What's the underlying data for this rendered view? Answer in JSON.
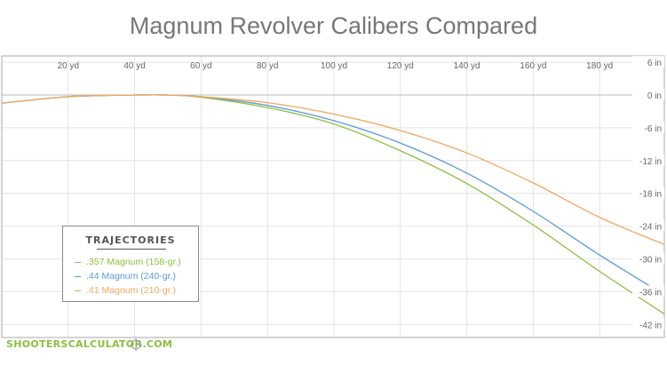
{
  "chart_data": {
    "type": "line",
    "title": "Magnum Revolver Calibers Compared",
    "x_unit": "yd",
    "y_unit": "in",
    "xlim": [
      0,
      200
    ],
    "ylim": [
      -46,
      6
    ],
    "x_ticks": [
      {
        "value": 20,
        "label": "20 yd"
      },
      {
        "value": 40,
        "label": "40 yd"
      },
      {
        "value": 60,
        "label": "60 yd"
      },
      {
        "value": 80,
        "label": "80 yd"
      },
      {
        "value": 100,
        "label": "100 yd"
      },
      {
        "value": 120,
        "label": "120 yd"
      },
      {
        "value": 140,
        "label": "140 yd"
      },
      {
        "value": 160,
        "label": "160 yd"
      },
      {
        "value": 180,
        "label": "180 yd"
      }
    ],
    "y_ticks": [
      {
        "value": 6,
        "label": "6 in"
      },
      {
        "value": 0,
        "label": "0 in"
      },
      {
        "value": -6,
        "label": "-6 in"
      },
      {
        "value": -12,
        "label": "-12 in"
      },
      {
        "value": -18,
        "label": "-18 in"
      },
      {
        "value": -24,
        "label": "-24 in"
      },
      {
        "value": -30,
        "label": "-30 in"
      },
      {
        "value": -36,
        "label": "-36 in"
      },
      {
        "value": -42,
        "label": "-42 in"
      }
    ],
    "grid": true,
    "legend": {
      "title": "TRAJECTORIES",
      "position": "bottom-left"
    },
    "x": [
      0,
      20,
      40,
      50,
      60,
      80,
      100,
      120,
      140,
      160,
      180,
      200
    ],
    "series": [
      {
        "name": ".357 Magnum (158-gr.)",
        "color": "#8cbf3f",
        "values": [
          -1.5,
          -0.3,
          0.0,
          0.0,
          -0.4,
          -2.3,
          -5.3,
          -10.2,
          -16.2,
          -23.8,
          -32.3,
          -40.3
        ]
      },
      {
        "name": ".44 Magnum (240-gr.)",
        "color": "#5b9bd5",
        "values": [
          -1.5,
          -0.3,
          0.0,
          0.0,
          -0.3,
          -1.9,
          -4.7,
          -8.8,
          -14.3,
          -21.3,
          -29.3,
          -36.8
        ]
      },
      {
        "name": ".41 Magnum (210-gr.)",
        "color": "#f0a860",
        "values": [
          -1.5,
          -0.3,
          0.0,
          0.0,
          -0.3,
          -1.4,
          -3.5,
          -6.5,
          -10.6,
          -16.1,
          -22.4,
          -27.5
        ]
      }
    ]
  },
  "watermark": {
    "text": "SHOOTERSCALCULATOR.COM",
    "icon": "crosshair-icon"
  }
}
